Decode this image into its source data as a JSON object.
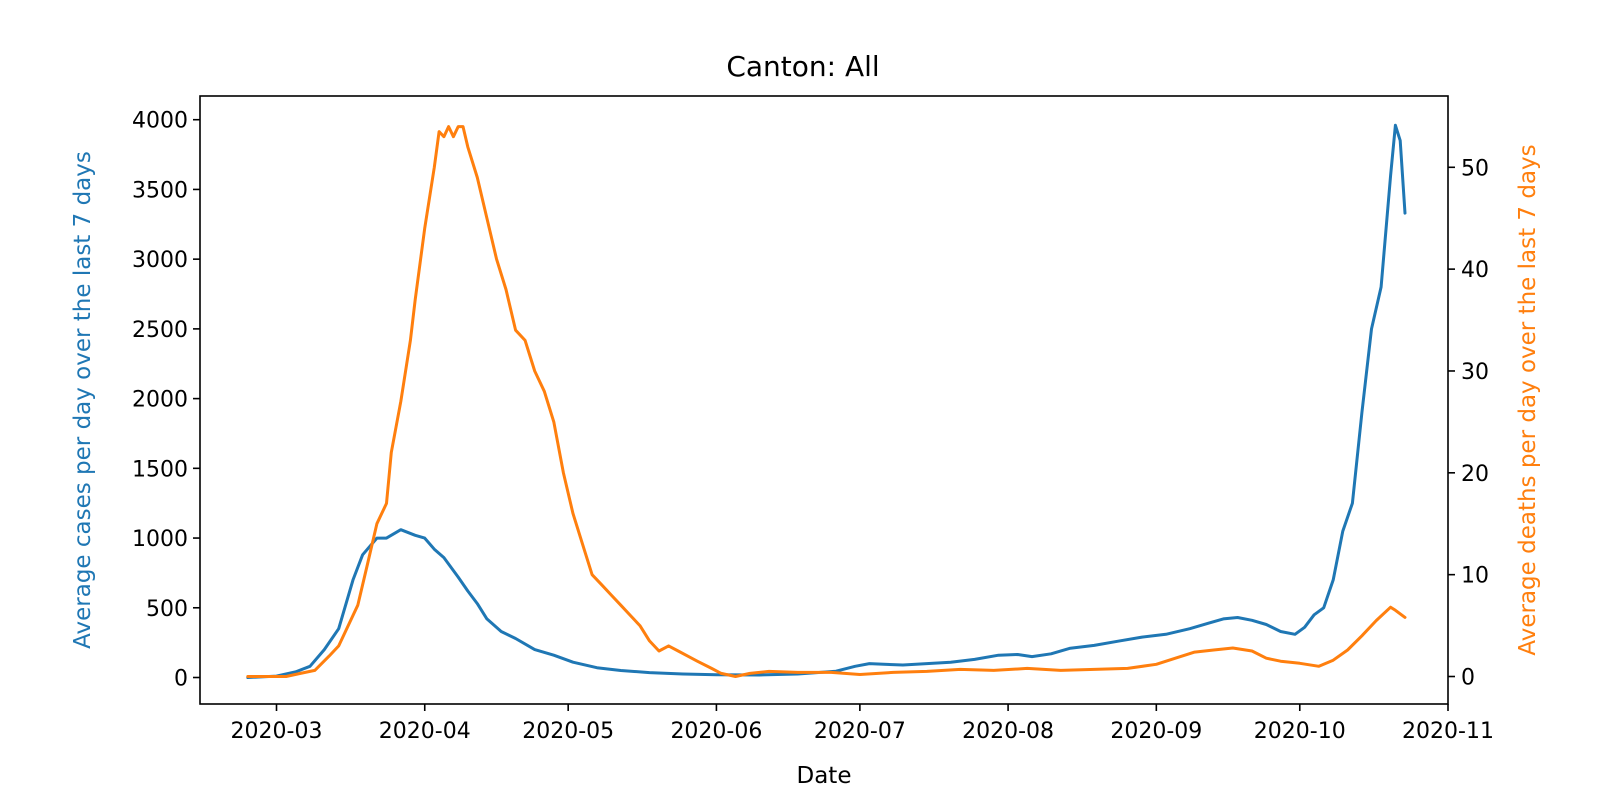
{
  "chart_data": {
    "type": "line",
    "title": "Canton: All",
    "xlabel": "Date",
    "x_ticks": [
      "2020-03",
      "2020-04",
      "2020-05",
      "2020-06",
      "2020-07",
      "2020-08",
      "2020-09",
      "2020-10",
      "2020-11"
    ],
    "xlim": [
      "2020-02-14",
      "2020-11-01"
    ],
    "y_left": {
      "label": "Average cases per day over the last 7 days",
      "ticks": [
        0,
        500,
        1000,
        1500,
        2000,
        2500,
        3000,
        3500,
        4000
      ],
      "ylim": [
        -190,
        4170
      ],
      "color": "#1f77b4"
    },
    "y_right": {
      "label": "Average deaths per day over the last 7 days",
      "ticks": [
        0,
        10,
        20,
        30,
        40,
        50
      ],
      "ylim": [
        -2.7,
        57
      ],
      "color": "#ff7f0e"
    },
    "series": [
      {
        "axis": "left",
        "color": "#1f77b4",
        "points": [
          [
            "2020-02-24",
            0
          ],
          [
            "2020-03-01",
            10
          ],
          [
            "2020-03-05",
            40
          ],
          [
            "2020-03-08",
            80
          ],
          [
            "2020-03-11",
            200
          ],
          [
            "2020-03-14",
            350
          ],
          [
            "2020-03-17",
            700
          ],
          [
            "2020-03-19",
            880
          ],
          [
            "2020-03-22",
            1000
          ],
          [
            "2020-03-24",
            1000
          ],
          [
            "2020-03-27",
            1060
          ],
          [
            "2020-03-30",
            1020
          ],
          [
            "2020-04-01",
            1000
          ],
          [
            "2020-04-03",
            920
          ],
          [
            "2020-04-05",
            860
          ],
          [
            "2020-04-08",
            720
          ],
          [
            "2020-04-10",
            620
          ],
          [
            "2020-04-12",
            530
          ],
          [
            "2020-04-14",
            420
          ],
          [
            "2020-04-17",
            330
          ],
          [
            "2020-04-20",
            280
          ],
          [
            "2020-04-24",
            200
          ],
          [
            "2020-04-28",
            160
          ],
          [
            "2020-05-02",
            110
          ],
          [
            "2020-05-07",
            70
          ],
          [
            "2020-05-12",
            50
          ],
          [
            "2020-05-18",
            35
          ],
          [
            "2020-05-25",
            25
          ],
          [
            "2020-06-01",
            20
          ],
          [
            "2020-06-10",
            18
          ],
          [
            "2020-06-18",
            25
          ],
          [
            "2020-06-26",
            45
          ],
          [
            "2020-06-30",
            80
          ],
          [
            "2020-07-03",
            100
          ],
          [
            "2020-07-06",
            95
          ],
          [
            "2020-07-10",
            90
          ],
          [
            "2020-07-15",
            100
          ],
          [
            "2020-07-20",
            110
          ],
          [
            "2020-07-25",
            130
          ],
          [
            "2020-07-30",
            160
          ],
          [
            "2020-08-03",
            165
          ],
          [
            "2020-08-06",
            150
          ],
          [
            "2020-08-10",
            170
          ],
          [
            "2020-08-14",
            210
          ],
          [
            "2020-08-19",
            230
          ],
          [
            "2020-08-24",
            260
          ],
          [
            "2020-08-29",
            290
          ],
          [
            "2020-09-03",
            310
          ],
          [
            "2020-09-08",
            350
          ],
          [
            "2020-09-12",
            390
          ],
          [
            "2020-09-15",
            420
          ],
          [
            "2020-09-18",
            430
          ],
          [
            "2020-09-21",
            410
          ],
          [
            "2020-09-24",
            380
          ],
          [
            "2020-09-27",
            330
          ],
          [
            "2020-09-30",
            310
          ],
          [
            "2020-10-02",
            360
          ],
          [
            "2020-10-04",
            450
          ],
          [
            "2020-10-06",
            500
          ],
          [
            "2020-10-08",
            700
          ],
          [
            "2020-10-10",
            1050
          ],
          [
            "2020-10-12",
            1250
          ],
          [
            "2020-10-14",
            1900
          ],
          [
            "2020-10-16",
            2500
          ],
          [
            "2020-10-18",
            2800
          ],
          [
            "2020-10-20",
            3600
          ],
          [
            "2020-10-21",
            3960
          ],
          [
            "2020-10-22",
            3850
          ],
          [
            "2020-10-23",
            3330
          ]
        ]
      },
      {
        "axis": "right",
        "color": "#ff7f0e",
        "points": [
          [
            "2020-02-24",
            0
          ],
          [
            "2020-03-03",
            0
          ],
          [
            "2020-03-06",
            0.3
          ],
          [
            "2020-03-09",
            0.6
          ],
          [
            "2020-03-12",
            2
          ],
          [
            "2020-03-14",
            3
          ],
          [
            "2020-03-16",
            5
          ],
          [
            "2020-03-18",
            7
          ],
          [
            "2020-03-20",
            11
          ],
          [
            "2020-03-22",
            15
          ],
          [
            "2020-03-24",
            17
          ],
          [
            "2020-03-25",
            22
          ],
          [
            "2020-03-27",
            27
          ],
          [
            "2020-03-29",
            33
          ],
          [
            "2020-03-30",
            37
          ],
          [
            "2020-04-01",
            44
          ],
          [
            "2020-04-03",
            50
          ],
          [
            "2020-04-04",
            53.5
          ],
          [
            "2020-04-05",
            53
          ],
          [
            "2020-04-06",
            54
          ],
          [
            "2020-04-07",
            53
          ],
          [
            "2020-04-08",
            54
          ],
          [
            "2020-04-09",
            54
          ],
          [
            "2020-04-10",
            52
          ],
          [
            "2020-04-12",
            49
          ],
          [
            "2020-04-14",
            45
          ],
          [
            "2020-04-16",
            41
          ],
          [
            "2020-04-18",
            38
          ],
          [
            "2020-04-20",
            34
          ],
          [
            "2020-04-22",
            33
          ],
          [
            "2020-04-24",
            30
          ],
          [
            "2020-04-26",
            28
          ],
          [
            "2020-04-28",
            25
          ],
          [
            "2020-04-30",
            20
          ],
          [
            "2020-05-02",
            16
          ],
          [
            "2020-05-04",
            13
          ],
          [
            "2020-05-06",
            10
          ],
          [
            "2020-05-08",
            9
          ],
          [
            "2020-05-10",
            8
          ],
          [
            "2020-05-12",
            7
          ],
          [
            "2020-05-14",
            6
          ],
          [
            "2020-05-16",
            5
          ],
          [
            "2020-05-18",
            3.5
          ],
          [
            "2020-05-20",
            2.5
          ],
          [
            "2020-05-22",
            3
          ],
          [
            "2020-05-24",
            2.5
          ],
          [
            "2020-05-26",
            2
          ],
          [
            "2020-05-28",
            1.5
          ],
          [
            "2020-05-31",
            0.8
          ],
          [
            "2020-06-02",
            0.3
          ],
          [
            "2020-06-05",
            0
          ],
          [
            "2020-06-08",
            0.3
          ],
          [
            "2020-06-12",
            0.5
          ],
          [
            "2020-06-18",
            0.4
          ],
          [
            "2020-06-25",
            0.4
          ],
          [
            "2020-07-01",
            0.2
          ],
          [
            "2020-07-08",
            0.4
          ],
          [
            "2020-07-15",
            0.5
          ],
          [
            "2020-07-22",
            0.7
          ],
          [
            "2020-07-29",
            0.6
          ],
          [
            "2020-08-05",
            0.8
          ],
          [
            "2020-08-12",
            0.6
          ],
          [
            "2020-08-19",
            0.7
          ],
          [
            "2020-08-26",
            0.8
          ],
          [
            "2020-09-01",
            1.2
          ],
          [
            "2020-09-05",
            1.8
          ],
          [
            "2020-09-09",
            2.4
          ],
          [
            "2020-09-13",
            2.6
          ],
          [
            "2020-09-17",
            2.8
          ],
          [
            "2020-09-21",
            2.5
          ],
          [
            "2020-09-24",
            1.8
          ],
          [
            "2020-09-27",
            1.5
          ],
          [
            "2020-10-01",
            1.3
          ],
          [
            "2020-10-05",
            1.0
          ],
          [
            "2020-10-08",
            1.6
          ],
          [
            "2020-10-11",
            2.6
          ],
          [
            "2020-10-14",
            4.0
          ],
          [
            "2020-10-17",
            5.5
          ],
          [
            "2020-10-20",
            6.8
          ],
          [
            "2020-10-21",
            6.5
          ],
          [
            "2020-10-23",
            5.8
          ]
        ]
      }
    ]
  }
}
